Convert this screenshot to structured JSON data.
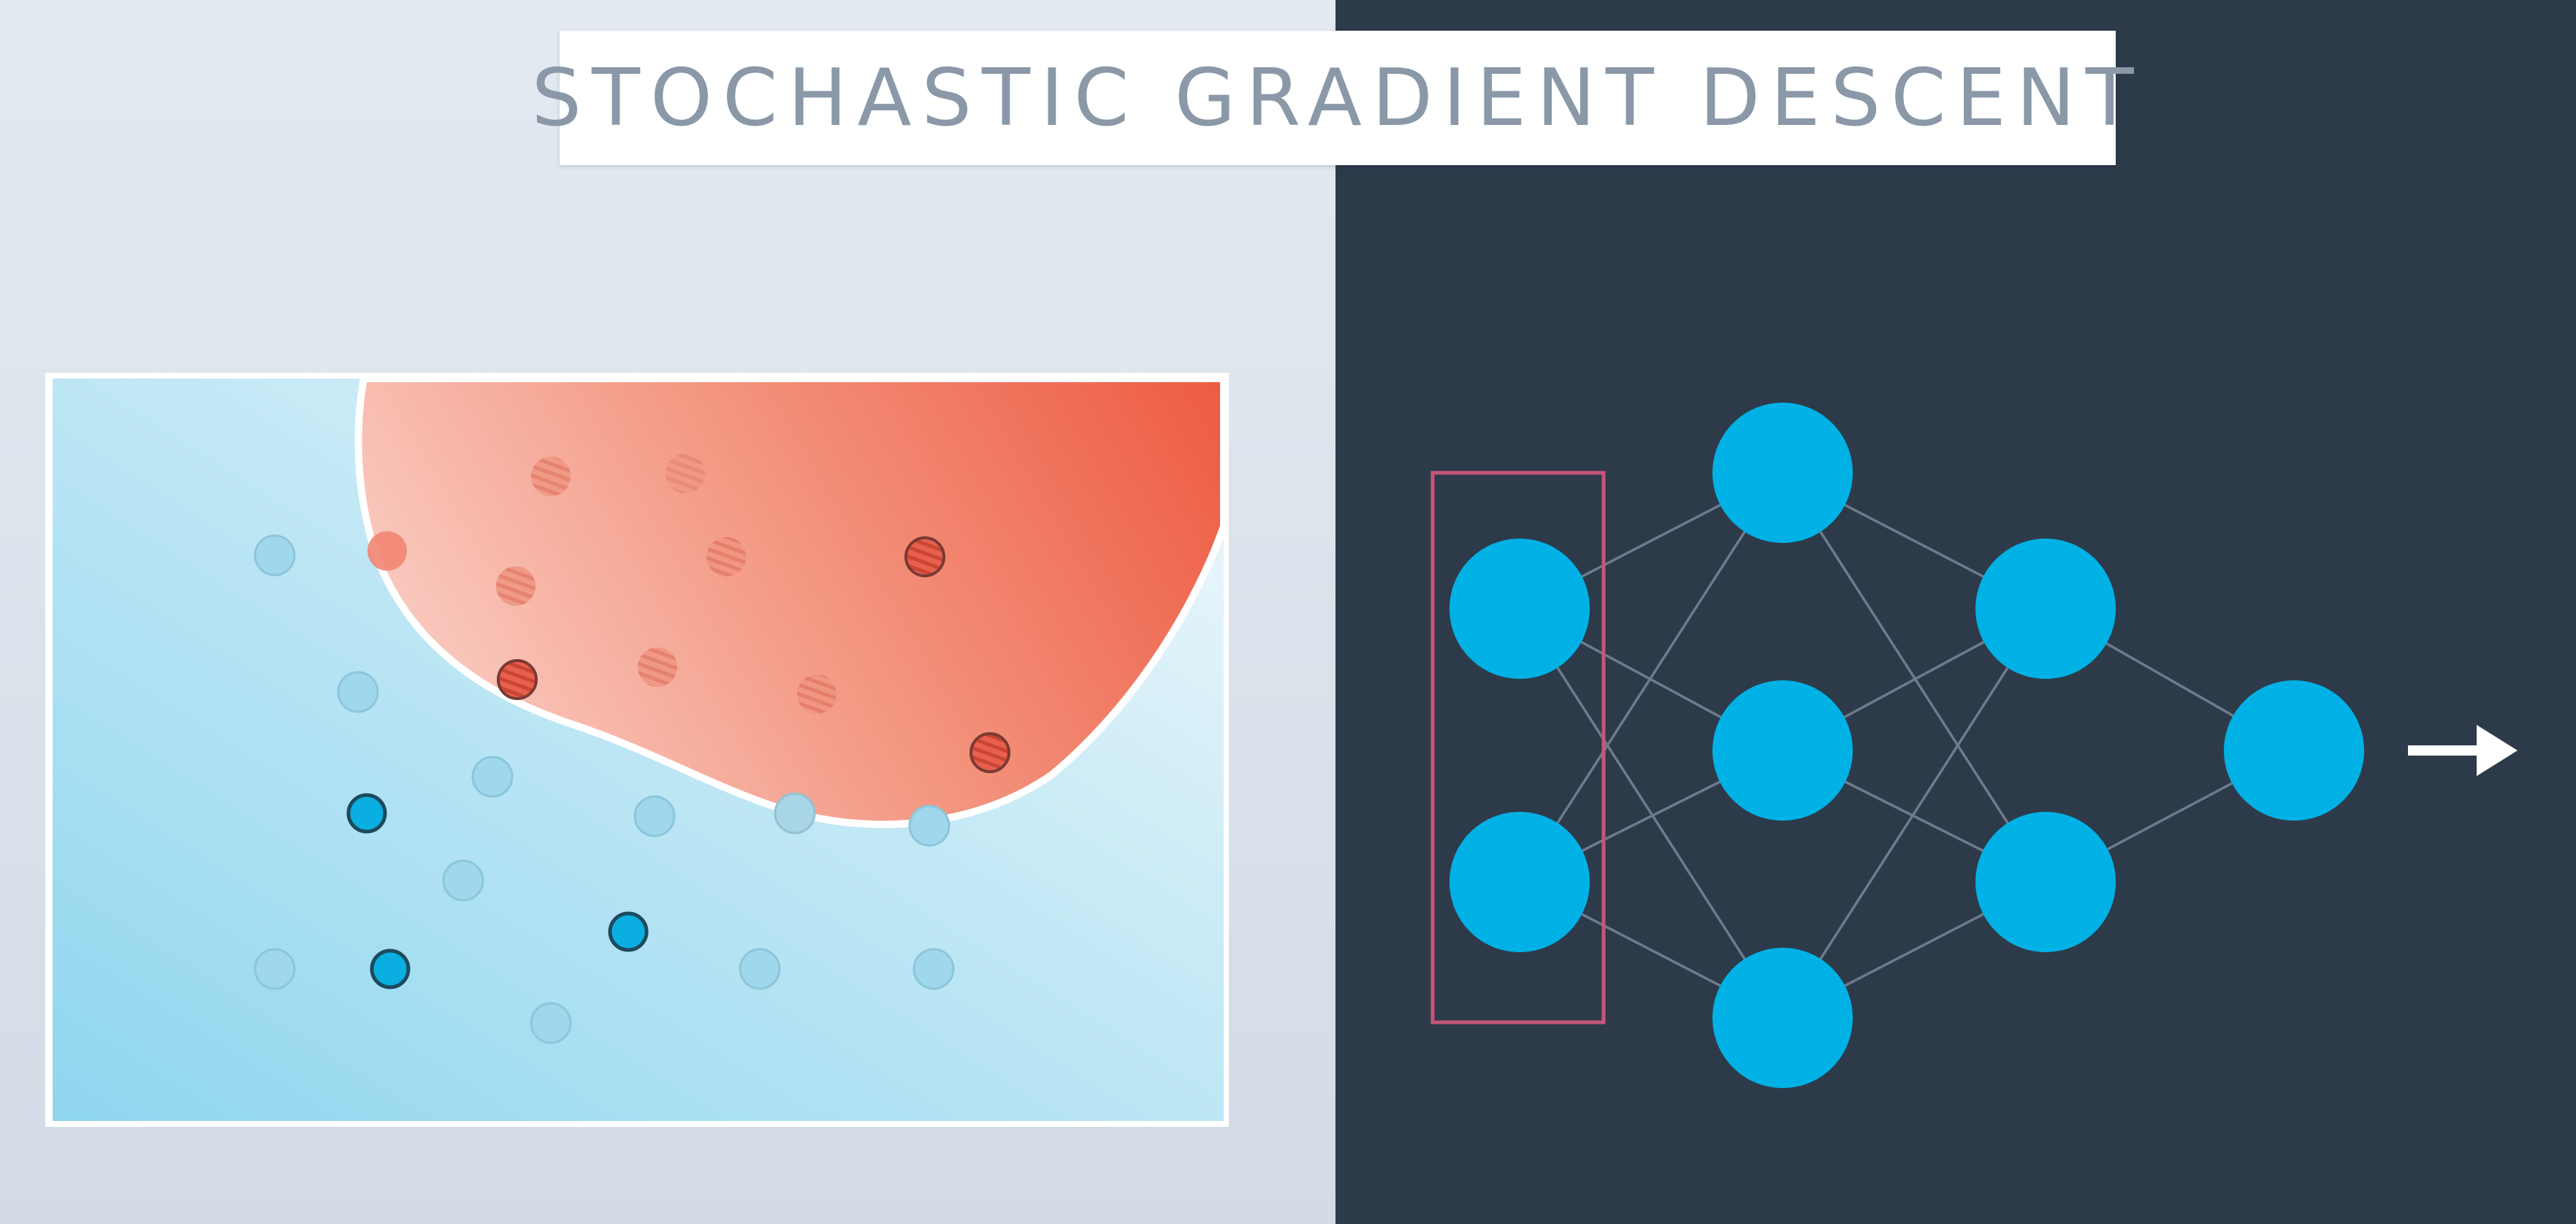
{
  "title": "STOCHASTIC GRADIENT DESCENT",
  "colors": {
    "left_background": "#dbe3ec",
    "right_background": "#2d3a4a",
    "blue_region": "#a9dcf0",
    "red_region": "#ee6a55",
    "node": "#00b1e5",
    "edge": "#7a8798",
    "selection_box": "#d0587e",
    "arrow": "#ffffff"
  },
  "plot": {
    "blue_points": [
      {
        "label": "",
        "emphasized": false
      },
      {
        "label": "",
        "emphasized": false
      },
      {
        "label": "",
        "emphasized": false
      },
      {
        "label": "",
        "emphasized": true
      },
      {
        "label": "",
        "emphasized": false
      },
      {
        "label": "",
        "emphasized": false
      },
      {
        "label": "",
        "emphasized": false
      },
      {
        "label": "",
        "emphasized": false
      },
      {
        "label": "",
        "emphasized": true
      },
      {
        "label": "",
        "emphasized": true
      },
      {
        "label": "",
        "emphasized": false
      },
      {
        "label": "",
        "emphasized": false
      },
      {
        "label": "",
        "emphasized": false
      },
      {
        "label": "",
        "emphasized": false
      }
    ],
    "red_points": [
      {
        "emphasized": false
      },
      {
        "emphasized": false
      },
      {
        "emphasized": false
      },
      {
        "emphasized": false
      },
      {
        "emphasized": false
      },
      {
        "emphasized": true
      },
      {
        "emphasized": true
      },
      {
        "emphasized": false
      },
      {
        "emphasized": false
      },
      {
        "emphasized": true
      }
    ]
  },
  "network": {
    "layers": [
      2,
      3,
      2,
      1
    ],
    "highlighted_layer": 0,
    "output_arrow": "right-arrow-icon"
  }
}
